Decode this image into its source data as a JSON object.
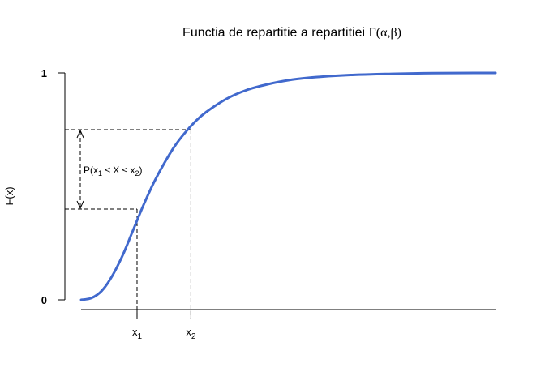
{
  "chart_data": {
    "type": "line",
    "title": {
      "text": "Functia de repartitie a repartitiei ",
      "greek": "Γ(α,β)"
    },
    "ylabel": "F(x)",
    "y_ticks": [
      "0",
      "1"
    ],
    "x_ticks": [
      {
        "base": "x",
        "sub": "1"
      },
      {
        "base": "x",
        "sub": "2"
      }
    ],
    "annotation": {
      "p": "P(x",
      "s1": "1",
      "mid": " ≤ X ≤ x",
      "s2": "2",
      "end": ")"
    },
    "xlim": [
      0,
      10
    ],
    "ylim": [
      0,
      1
    ],
    "marked_points": [
      {
        "x": 1.35,
        "F": 0.4
      },
      {
        "x": 2.65,
        "F": 0.75
      }
    ],
    "series": [
      {
        "color": "#4169cd",
        "x": [
          0.0,
          0.25,
          0.5,
          0.75,
          1.0,
          1.25,
          1.5,
          1.75,
          2.0,
          2.25,
          2.5,
          2.75,
          3.0,
          3.5,
          4.0,
          4.5,
          5.0,
          5.5,
          6.0,
          6.5,
          7.0,
          7.5,
          8.0,
          8.5,
          9.0,
          9.5,
          10.0
        ],
        "values": [
          0.0,
          0.008,
          0.04,
          0.105,
          0.195,
          0.305,
          0.415,
          0.515,
          0.6,
          0.675,
          0.735,
          0.785,
          0.825,
          0.885,
          0.925,
          0.95,
          0.968,
          0.979,
          0.986,
          0.991,
          0.994,
          0.996,
          0.998,
          0.999,
          0.9995,
          1.0,
          1.0
        ]
      }
    ],
    "grid": false,
    "legend": "none"
  }
}
